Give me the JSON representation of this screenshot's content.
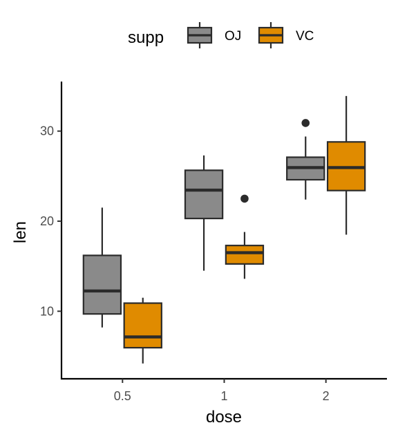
{
  "chart_data": {
    "type": "boxplot",
    "title": "",
    "xlabel": "dose",
    "ylabel": "len",
    "ylim": [
      2.5,
      35.5
    ],
    "yticks": [
      10,
      20,
      30
    ],
    "categories": [
      "0.5",
      "1",
      "2"
    ],
    "legend": {
      "title": "supp",
      "position": "top"
    },
    "series": [
      {
        "name": "OJ",
        "color": "#8a8a8a",
        "boxes": [
          {
            "category": "0.5",
            "min": 8.2,
            "q1": 9.7,
            "median": 12.25,
            "q3": 16.2,
            "max": 21.5,
            "outliers": []
          },
          {
            "category": "1",
            "min": 14.5,
            "q1": 20.3,
            "median": 23.45,
            "q3": 25.65,
            "max": 27.3,
            "outliers": []
          },
          {
            "category": "2",
            "min": 22.4,
            "q1": 24.6,
            "median": 25.95,
            "q3": 27.1,
            "max": 29.4,
            "outliers": [
              30.9
            ]
          }
        ]
      },
      {
        "name": "VC",
        "color": "#e08b00",
        "boxes": [
          {
            "category": "0.5",
            "min": 4.2,
            "q1": 5.95,
            "median": 7.15,
            "q3": 10.9,
            "max": 11.5,
            "outliers": []
          },
          {
            "category": "1",
            "min": 13.6,
            "q1": 15.25,
            "median": 16.5,
            "q3": 17.3,
            "max": 18.8,
            "outliers": [
              22.5
            ]
          },
          {
            "category": "2",
            "min": 18.5,
            "q1": 23.4,
            "median": 25.95,
            "q3": 28.8,
            "max": 33.9,
            "outliers": []
          }
        ]
      }
    ]
  }
}
